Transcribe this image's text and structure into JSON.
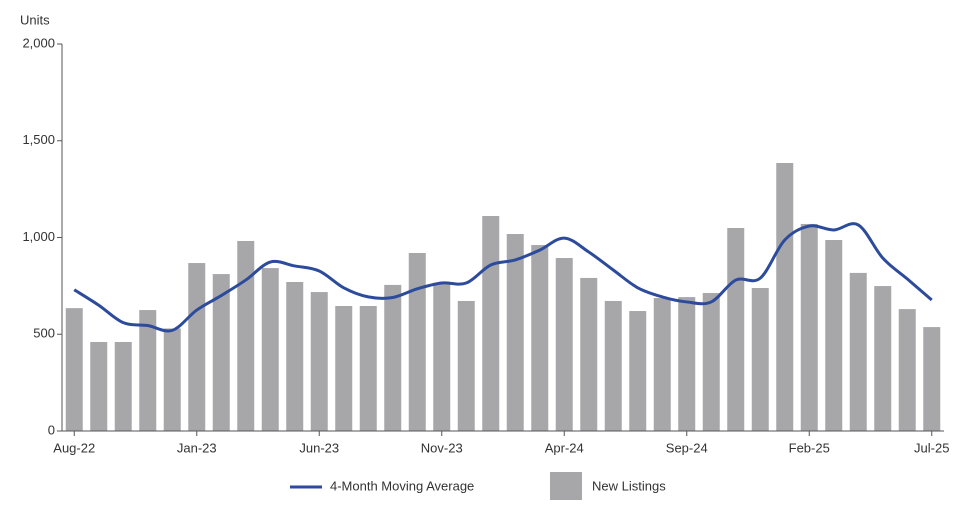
{
  "chart_data": {
    "type": "bar",
    "y_label": "Units",
    "categories": [
      "Aug-22",
      null,
      null,
      null,
      null,
      "Jan-23",
      null,
      null,
      null,
      null,
      "Jun-23",
      null,
      null,
      null,
      null,
      "Nov-23",
      null,
      null,
      null,
      null,
      "Apr-24",
      null,
      null,
      null,
      null,
      "Sep-24",
      null,
      null,
      null,
      null,
      "Feb-25",
      null,
      null,
      null,
      null,
      "Jul-25"
    ],
    "series": [
      {
        "name": "New Listings",
        "type": "bar",
        "color": "#a7a7aa",
        "values": [
          635,
          460,
          460,
          625,
          530,
          868,
          811,
          982,
          842,
          770,
          718,
          646,
          646,
          755,
          920,
          765,
          672,
          1111,
          1018,
          961,
          894,
          791,
          672,
          620,
          687,
          692,
          713,
          1049,
          739,
          1385,
          1070,
          987,
          817,
          749,
          630,
          537
        ]
      },
      {
        "name": "4-Month Moving Average",
        "type": "line",
        "color": "#2d4b9c",
        "values": [
          730,
          650,
          560,
          545,
          520,
          625,
          700,
          780,
          873,
          853,
          827,
          740,
          693,
          690,
          735,
          765,
          765,
          858,
          884,
          935,
          997,
          925,
          832,
          740,
          693,
          667,
          667,
          780,
          790,
          987,
          1059,
          1039,
          1065,
          894,
          786,
          677
        ]
      }
    ],
    "ylim": [
      0,
      2000
    ],
    "yticks": [
      {
        "value": 0,
        "label": "0"
      },
      {
        "value": 500,
        "label": "500"
      },
      {
        "value": 1000,
        "label": "1,000"
      },
      {
        "value": 1500,
        "label": "1,500"
      },
      {
        "value": 2000,
        "label": "2,000"
      }
    ],
    "grid": false,
    "legend": "bottom"
  }
}
